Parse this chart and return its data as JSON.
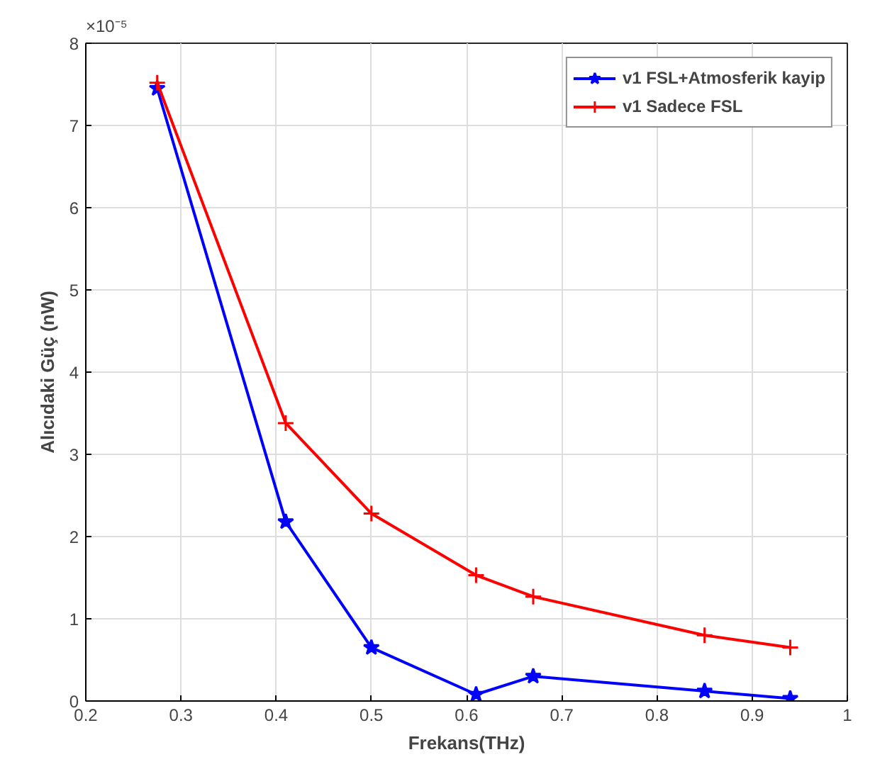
{
  "chart_data": {
    "type": "line",
    "xlabel": "Frekans(THz)",
    "ylabel": "Alıcıdaki Güç (nW)",
    "annotations": [
      "×10⁻⁵"
    ],
    "x": [
      0.275,
      0.41,
      0.5,
      0.61,
      0.67,
      0.85,
      0.94
    ],
    "series": [
      {
        "name": "v1 FSL+Atmosferik kayip",
        "color": "#0000ff",
        "marker": "star",
        "values": [
          7.45,
          2.18,
          0.65,
          0.08,
          0.3,
          0.12,
          0.03
        ]
      },
      {
        "name": "v1 Sadece FSL",
        "color": "#ff0000",
        "marker": "cross",
        "values": [
          7.52,
          3.38,
          2.28,
          1.53,
          1.27,
          0.8,
          0.65
        ]
      }
    ],
    "xlim": [
      0.2,
      1
    ],
    "xticks": [
      0.2,
      0.3,
      0.4,
      0.5,
      0.6,
      0.7,
      0.8,
      0.9,
      1
    ],
    "ylim": [
      0,
      8
    ],
    "yticks": [
      0,
      1,
      2,
      3,
      4,
      5,
      6,
      7,
      8
    ],
    "grid": true,
    "legend": "top right",
    "line_style": "solid"
  }
}
